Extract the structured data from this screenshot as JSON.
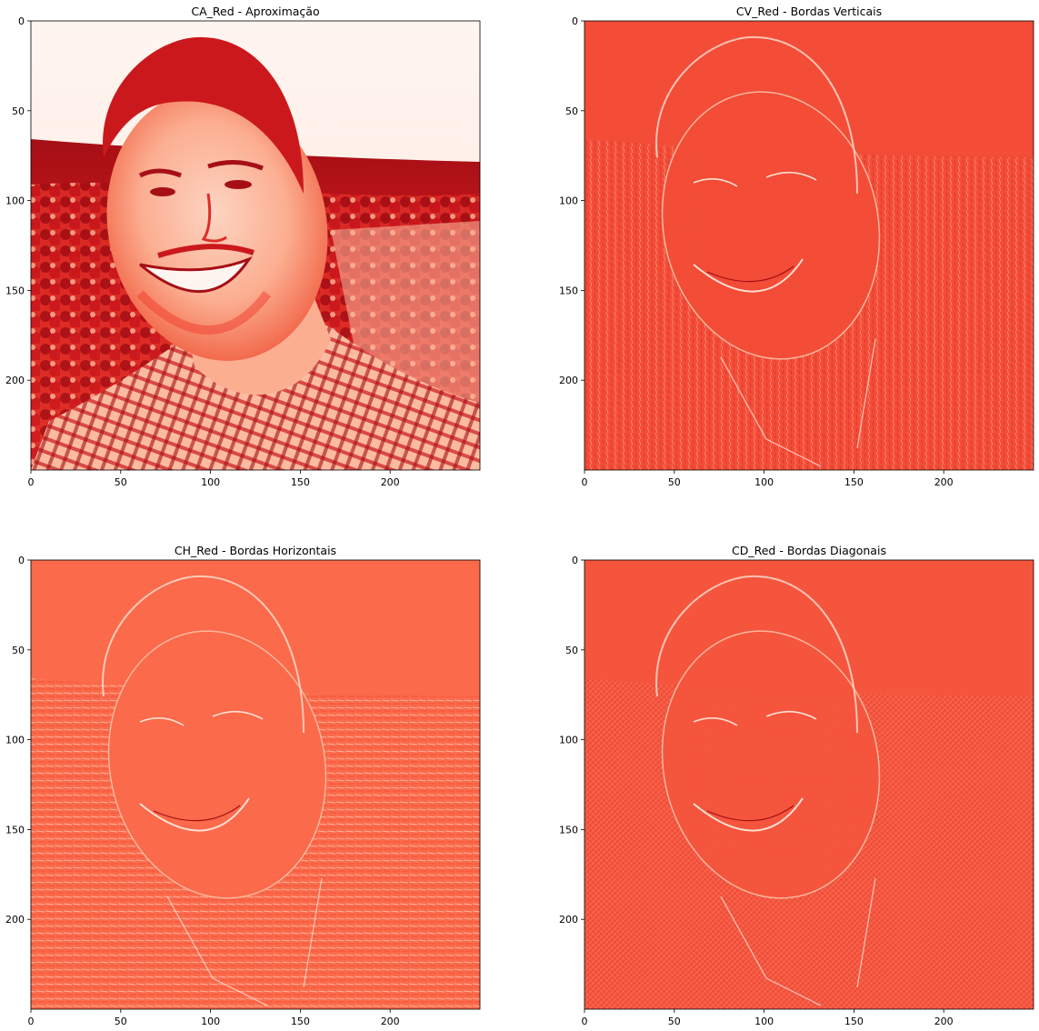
{
  "colors": {
    "background": "#ffffff",
    "axis": "#000000",
    "text": "#000000"
  },
  "chart_data": [
    {
      "type": "heatmap",
      "title": "CA_Red - Aproximação",
      "colormap": "Reds",
      "x_ticks": [
        0,
        50,
        100,
        150,
        200
      ],
      "y_ticks": [
        0,
        50,
        100,
        150,
        200
      ],
      "xlim": [
        0,
        250
      ],
      "ylim": [
        250,
        0
      ],
      "grid": false
    },
    {
      "type": "heatmap",
      "title": "CV_Red - Bordas Verticais",
      "colormap": "Reds",
      "x_ticks": [
        0,
        50,
        100,
        150,
        200
      ],
      "y_ticks": [
        0,
        50,
        100,
        150,
        200
      ],
      "xlim": [
        0,
        250
      ],
      "ylim": [
        250,
        0
      ],
      "grid": false
    },
    {
      "type": "heatmap",
      "title": "CH_Red - Bordas Horizontais",
      "colormap": "Reds",
      "x_ticks": [
        0,
        50,
        100,
        150,
        200
      ],
      "y_ticks": [
        0,
        50,
        100,
        150,
        200
      ],
      "xlim": [
        0,
        250
      ],
      "ylim": [
        250,
        0
      ],
      "grid": false
    },
    {
      "type": "heatmap",
      "title": "CD_Red - Bordas Diagonais",
      "colormap": "Reds",
      "x_ticks": [
        0,
        50,
        100,
        150,
        200
      ],
      "y_ticks": [
        0,
        50,
        100,
        150,
        200
      ],
      "xlim": [
        0,
        250
      ],
      "ylim": [
        250,
        0
      ],
      "grid": false
    }
  ]
}
